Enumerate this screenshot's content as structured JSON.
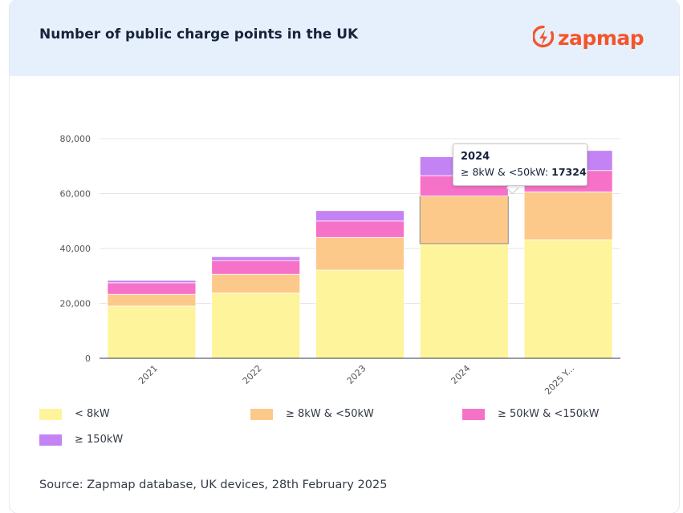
{
  "header": {
    "title": "Number of public charge points in the UK",
    "logo_text": "zapmap",
    "logo_icon": "bolt-icon"
  },
  "colors": {
    "header_bg": "#e6f0fd",
    "brand": "#f2552c",
    "series": [
      "#fdf49c",
      "#fdc98a",
      "#f672c9",
      "#c383f4"
    ]
  },
  "chart_data": {
    "type": "bar",
    "stacked": true,
    "categories": [
      "2021",
      "2022",
      "2023",
      "2024",
      "2025 Y..."
    ],
    "series": [
      {
        "name": "< 8kW",
        "values": [
          19000,
          23800,
          32100,
          41800,
          43200
        ]
      },
      {
        "name": "≥ 8kW & <50kW",
        "values": [
          4300,
          6800,
          11900,
          17324,
          17400
        ]
      },
      {
        "name": "≥ 50kW & <150kW",
        "values": [
          4200,
          5000,
          6000,
          7400,
          7800
        ]
      },
      {
        "name": "≥ 150kW",
        "values": [
          900,
          1400,
          3800,
          6900,
          7300
        ]
      }
    ],
    "ylim": [
      0,
      80000
    ],
    "yticks": [
      0,
      20000,
      40000,
      60000,
      80000
    ],
    "ytick_labels": [
      "0",
      "20,000",
      "40,000",
      "60,000",
      "80,000"
    ],
    "grid": true,
    "legend_position": "bottom",
    "highlighted": {
      "category_index": 3,
      "series_index": 1
    }
  },
  "tooltip": {
    "title": "2024",
    "label": "≥ 8kW & <50kW:",
    "value": "17324"
  },
  "source": "Source: Zapmap database, UK devices, 28th February 2025"
}
